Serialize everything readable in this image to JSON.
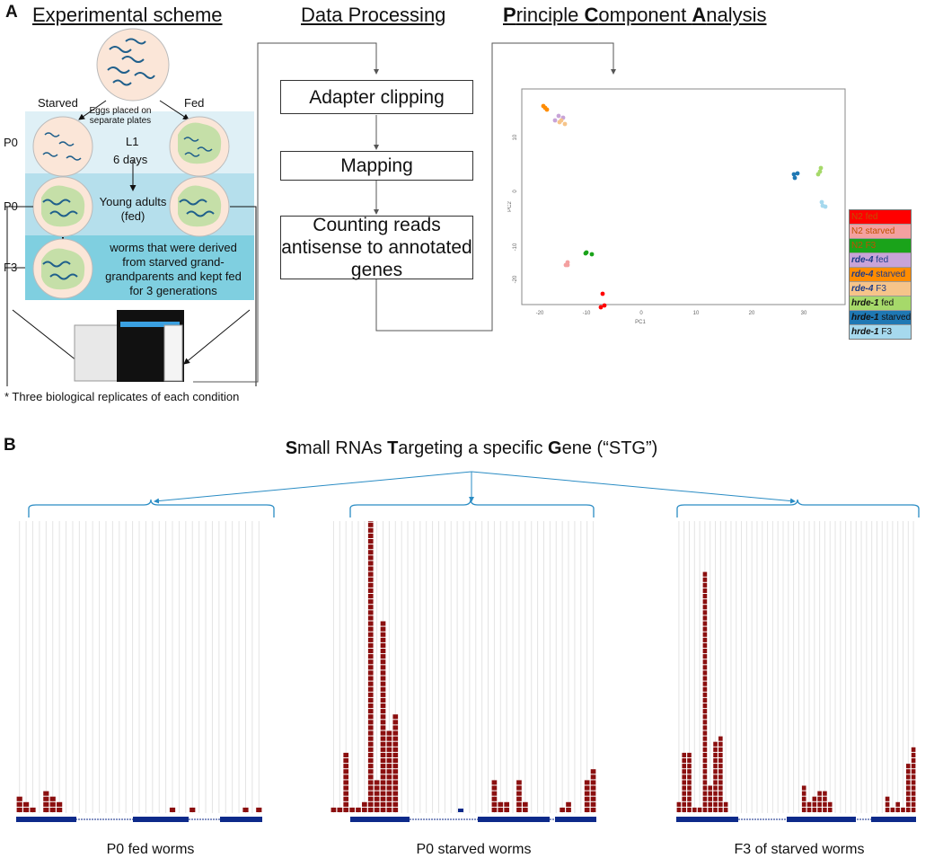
{
  "panel_a": {
    "label": "A",
    "headings": {
      "scheme": "Experimental scheme",
      "processing": "Data Processing",
      "pca": {
        "p1": "P",
        "r1": "rinciple ",
        "p2": "C",
        "r2": "omponent ",
        "p3": "A",
        "r3": "nalysis"
      }
    },
    "scheme": {
      "eggs_label": "Eggs placed on separate plates",
      "starved": "Starved",
      "fed": "Fed",
      "generation_labels": [
        "P0",
        "P0",
        "F3"
      ],
      "l1": "L1",
      "days": "6 days",
      "young_adults": "Young adults (fed)",
      "f3_text": "worms that were derived from starved grand-grandparents and kept fed for 3 generations",
      "replicates_note": "* Three biological replicates of each condition",
      "colors": {
        "band1": "#dff0f6",
        "band2": "#b5dfec",
        "band3": "#7fcfe0",
        "plate": "#fbe6d8",
        "lawn": "#c5dfa8",
        "worm": "#1f5f8b"
      }
    },
    "processing_steps": [
      "Adapter clipping",
      "Mapping",
      "Counting reads antisense to annotated genes"
    ],
    "pca_plot": {
      "xlabel": "PC1",
      "ylabel": "PC2",
      "x_ticks": [
        "-20",
        "-10",
        "0",
        "10",
        "20",
        "30"
      ],
      "y_ticks": [
        "10",
        "0",
        "-10",
        "-20"
      ]
    },
    "legend": [
      {
        "bold": "N2",
        "rest": " fed",
        "color": "#ff0000",
        "text_color": "#c05000"
      },
      {
        "bold": "N2",
        "rest": " starved",
        "color": "#f4a0a0",
        "text_color": "#c05000"
      },
      {
        "bold": "N2",
        "rest": " F3",
        "color": "#1aa31a",
        "text_color": "#c05000"
      },
      {
        "bold": "rde-4",
        "rest": " fed",
        "color": "#c8a4d8",
        "text_color": "#1a3a8a"
      },
      {
        "bold": "rde-4",
        "rest": " starved",
        "color": "#ff8c00",
        "text_color": "#1a3a8a"
      },
      {
        "bold": "rde-4",
        "rest": " F3",
        "color": "#f6c48a",
        "text_color": "#1a3a8a"
      },
      {
        "bold": "hrde-1",
        "rest": " fed",
        "color": "#a6d96a",
        "text_color": "#111111"
      },
      {
        "bold": "hrde-1",
        "rest": " starved",
        "color": "#1f78b4",
        "text_color": "#111111"
      },
      {
        "bold": "hrde-1",
        "rest": " F3",
        "color": "#a6d9ee",
        "text_color": "#111111"
      }
    ]
  },
  "panel_b": {
    "label": "B",
    "title": {
      "b1": "S",
      "r1": "mall RNAs ",
      "b2": "T",
      "r2": "argeting a specific ",
      "b3": "G",
      "r3": "ene (“STG”)"
    },
    "bar_color": "#8b0f0f",
    "exon_color": "#0d2a8a",
    "tracks": [
      {
        "label": "P0 fed worms",
        "counts": [
          3,
          2,
          1,
          0,
          4,
          3,
          2,
          0,
          0,
          0,
          0,
          0,
          0,
          0,
          0,
          0,
          0,
          0,
          0,
          0,
          0,
          0,
          0,
          1,
          0,
          0,
          1,
          0,
          0,
          0,
          0,
          0,
          0,
          0,
          1,
          0,
          1
        ]
      },
      {
        "label": "P0 starved worms",
        "counts": [
          1,
          1,
          11,
          1,
          1,
          2,
          59,
          6,
          35,
          15,
          18,
          0,
          0,
          0,
          0,
          0,
          0,
          0,
          0,
          0,
          0,
          0,
          0,
          0,
          0,
          0,
          6,
          2,
          2,
          0,
          6,
          2,
          0,
          0,
          0,
          0,
          0,
          1,
          2,
          0,
          0,
          6,
          8
        ]
      },
      {
        "label": "F3 of starved worms",
        "counts": [
          2,
          11,
          11,
          1,
          1,
          44,
          5,
          13,
          14,
          2,
          0,
          0,
          0,
          0,
          0,
          0,
          0,
          0,
          0,
          0,
          0,
          0,
          0,
          0,
          5,
          2,
          3,
          4,
          4,
          2,
          0,
          0,
          0,
          0,
          0,
          0,
          0,
          0,
          0,
          0,
          3,
          1,
          2,
          1,
          9,
          12
        ]
      }
    ]
  }
}
